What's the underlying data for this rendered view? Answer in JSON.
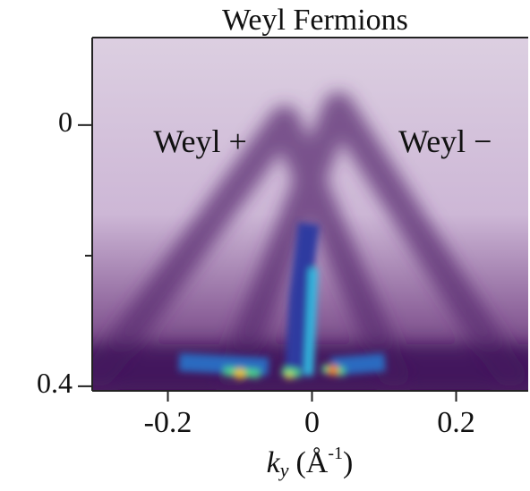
{
  "chart_data": {
    "type": "image",
    "title": "Weyl Fermions",
    "x_label": {
      "symbol": "k",
      "subscript": "y",
      "unit": "(Å",
      "superscript": "-1",
      "close": ")"
    },
    "xlim": [
      -0.305,
      0.3
    ],
    "xticks": [
      -0.2,
      0,
      0.2
    ],
    "ylim": [
      -0.134,
      0.407
    ],
    "yticks": [
      0,
      0.4
    ],
    "yminor": [
      0.2
    ],
    "annotations": [
      {
        "text": "Weyl +",
        "x": -0.22,
        "y": 0.03
      },
      {
        "text": "Weyl −",
        "x": 0.12,
        "y": 0.03
      }
    ]
  }
}
